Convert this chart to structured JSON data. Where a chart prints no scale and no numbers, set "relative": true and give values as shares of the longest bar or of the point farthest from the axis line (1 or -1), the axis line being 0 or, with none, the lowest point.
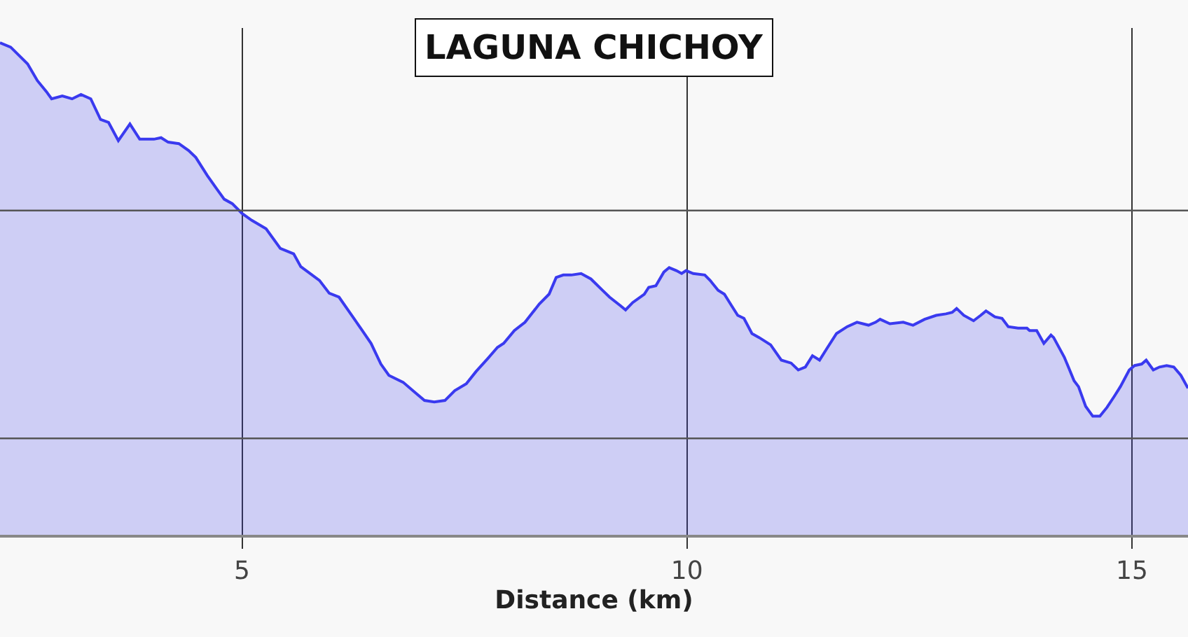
{
  "chart_data": {
    "type": "area",
    "title": "LAGUNA CHICHOY",
    "xlabel": "Distance (km)",
    "relative": true,
    "x": [
      2.28,
      2.4,
      2.59,
      2.7,
      2.8,
      2.86,
      2.98,
      3.09,
      3.19,
      3.3,
      3.41,
      3.5,
      3.61,
      3.74,
      3.85,
      4.01,
      4.09,
      4.17,
      4.29,
      4.4,
      4.48,
      4.61,
      4.72,
      4.8,
      4.89,
      5.0,
      5.11,
      5.27,
      5.43,
      5.58,
      5.66,
      5.87,
      5.98,
      6.09,
      6.21,
      6.34,
      6.45,
      6.56,
      6.65,
      6.81,
      6.94,
      7.05,
      7.16,
      7.28,
      7.39,
      7.52,
      7.63,
      7.76,
      7.87,
      7.94,
      8.06,
      8.18,
      8.34,
      8.45,
      8.53,
      8.61,
      8.7,
      8.81,
      8.92,
      9.05,
      9.13,
      9.25,
      9.31,
      9.39,
      9.52,
      9.57,
      9.65,
      9.74,
      9.8,
      9.88,
      9.94,
      9.99,
      10.07,
      10.2,
      10.26,
      10.35,
      10.42,
      10.5,
      10.57,
      10.64,
      10.73,
      10.81,
      10.94,
      11.06,
      11.17,
      11.25,
      11.33,
      11.41,
      11.49,
      11.57,
      11.68,
      11.8,
      11.91,
      12.04,
      12.12,
      12.17,
      12.28,
      12.43,
      12.54,
      12.67,
      12.8,
      12.91,
      12.98,
      13.03,
      13.11,
      13.22,
      13.3,
      13.36,
      13.46,
      13.54,
      13.61,
      13.72,
      13.82,
      13.85,
      13.93,
      14.01,
      14.09,
      14.12,
      14.24,
      14.35,
      14.4,
      14.48,
      14.56,
      14.64,
      14.72,
      14.8,
      14.87,
      14.97,
      15.03,
      15.11,
      15.16,
      15.24,
      15.31,
      15.39,
      15.47,
      15.55,
      15.63
    ],
    "series": [
      {
        "color": "#3a3aef",
        "values": [
          1.0,
          0.991,
          0.957,
          0.923,
          0.901,
          0.886,
          0.892,
          0.886,
          0.895,
          0.886,
          0.844,
          0.838,
          0.801,
          0.835,
          0.804,
          0.804,
          0.807,
          0.798,
          0.795,
          0.781,
          0.767,
          0.73,
          0.702,
          0.682,
          0.673,
          0.653,
          0.639,
          0.622,
          0.582,
          0.571,
          0.545,
          0.517,
          0.491,
          0.483,
          0.452,
          0.418,
          0.389,
          0.347,
          0.324,
          0.31,
          0.29,
          0.273,
          0.27,
          0.273,
          0.293,
          0.307,
          0.332,
          0.358,
          0.381,
          0.389,
          0.415,
          0.432,
          0.469,
          0.489,
          0.523,
          0.528,
          0.528,
          0.531,
          0.52,
          0.497,
          0.483,
          0.466,
          0.457,
          0.472,
          0.489,
          0.503,
          0.506,
          0.534,
          0.543,
          0.537,
          0.531,
          0.537,
          0.531,
          0.528,
          0.517,
          0.497,
          0.489,
          0.466,
          0.446,
          0.44,
          0.409,
          0.401,
          0.386,
          0.355,
          0.349,
          0.335,
          0.341,
          0.364,
          0.355,
          0.378,
          0.409,
          0.423,
          0.432,
          0.426,
          0.432,
          0.438,
          0.429,
          0.432,
          0.426,
          0.438,
          0.446,
          0.449,
          0.452,
          0.46,
          0.446,
          0.435,
          0.446,
          0.455,
          0.443,
          0.44,
          0.423,
          0.42,
          0.42,
          0.415,
          0.415,
          0.389,
          0.406,
          0.401,
          0.361,
          0.313,
          0.301,
          0.261,
          0.241,
          0.241,
          0.259,
          0.281,
          0.301,
          0.335,
          0.344,
          0.347,
          0.355,
          0.335,
          0.341,
          0.344,
          0.341,
          0.324,
          0.298
        ]
      }
    ],
    "xlim": [
      2.28,
      15.63
    ],
    "xticks": [
      5,
      10,
      15
    ],
    "grid": "x",
    "legend": false,
    "ref_lines": [
      {
        "axis": "y",
        "value": 0.659,
        "color": "#555555"
      },
      {
        "axis": "y",
        "value": 0.196,
        "color": "#555555"
      }
    ]
  }
}
